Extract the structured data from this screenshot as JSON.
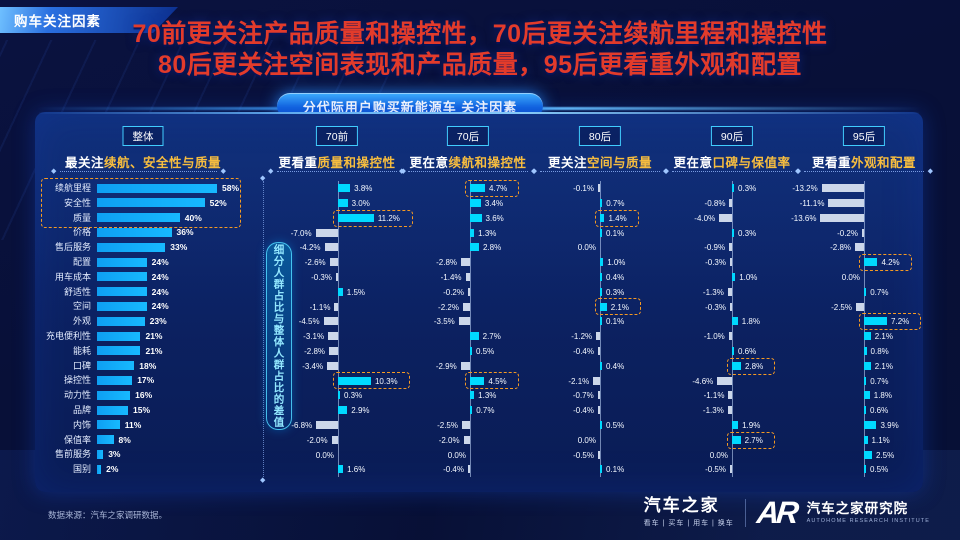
{
  "badge": "购车关注因素",
  "title": {
    "line1": "70前更关注产品质量和操控性，70后更关注续航里程和操控性",
    "line2": "80后更关注空间表现和产品质量，95后更看重外观和配置"
  },
  "pill": "分代际用户购买新能源车 关注因素",
  "axis_note": "细分人群占比与整体人群占比的差值",
  "categories": [
    "续航里程",
    "安全性",
    "质量",
    "价格",
    "售后服务",
    "配置",
    "用车成本",
    "舒适性",
    "空间",
    "外观",
    "充电便利性",
    "能耗",
    "口碑",
    "操控性",
    "动力性",
    "品牌",
    "内饰",
    "保值率",
    "售前服务",
    "国别"
  ],
  "overall": {
    "tab": "整体",
    "subtitle_prefix": "最关注",
    "subtitle_highlight": "续航、安全性与质量",
    "values": [
      58,
      52,
      40,
      36,
      33,
      24,
      24,
      24,
      24,
      23,
      21,
      21,
      18,
      17,
      16,
      15,
      11,
      8,
      3,
      2
    ],
    "boxed_rows": [
      0,
      1,
      2
    ]
  },
  "groups": [
    {
      "tab": "70前",
      "subtitle_prefix": "更看重",
      "subtitle_highlight": "质量和操控性",
      "values": [
        3.8,
        3.0,
        11.2,
        -7.0,
        -4.2,
        -2.6,
        -0.3,
        1.5,
        -1.1,
        -4.5,
        -3.1,
        -2.8,
        -3.4,
        10.3,
        0.3,
        2.9,
        -6.8,
        -2.0,
        0.0,
        1.6
      ],
      "boxed": [
        2,
        13
      ]
    },
    {
      "tab": "70后",
      "subtitle_prefix": "更在意",
      "subtitle_highlight": "续航和操控性",
      "values": [
        4.7,
        3.4,
        3.6,
        1.3,
        2.8,
        -2.8,
        -1.4,
        -0.2,
        -2.2,
        -3.5,
        2.7,
        0.5,
        -2.9,
        4.5,
        1.3,
        0.7,
        -2.5,
        -2.0,
        0.0,
        -0.4
      ],
      "boxed": [
        0,
        13
      ]
    },
    {
      "tab": "80后",
      "subtitle_prefix": "更关注",
      "subtitle_highlight": "空间与质量",
      "values": [
        -0.1,
        0.7,
        1.4,
        0.1,
        0.0,
        1.0,
        0.4,
        0.3,
        2.1,
        0.1,
        -1.2,
        -0.4,
        0.4,
        -2.1,
        -0.7,
        -0.4,
        0.5,
        0.0,
        -0.5,
        0.1
      ],
      "boxed": [
        2,
        8
      ]
    },
    {
      "tab": "90后",
      "subtitle_prefix": "更在意",
      "subtitle_highlight": "口碑与保值率",
      "values": [
        0.3,
        -0.8,
        -4.0,
        0.3,
        -0.9,
        -0.3,
        1.0,
        -1.3,
        -0.3,
        1.8,
        -1.0,
        0.6,
        2.8,
        -4.6,
        -1.1,
        -1.3,
        1.9,
        2.7,
        0.0,
        -0.5
      ],
      "boxed": [
        12,
        17
      ]
    },
    {
      "tab": "95后",
      "subtitle_prefix": "更看重",
      "subtitle_highlight": "外观和配置",
      "values": [
        -13.2,
        -11.1,
        -13.6,
        -0.2,
        -2.8,
        4.2,
        0.0,
        0.7,
        -2.5,
        7.2,
        2.1,
        0.8,
        2.1,
        0.7,
        1.8,
        0.6,
        3.9,
        1.1,
        2.5,
        0.5
      ],
      "boxed": [
        5,
        9
      ]
    }
  ],
  "source": "数据来源：汽车之家调研数据。",
  "footer": {
    "brand": "汽车之家",
    "brand_sub": "看车 | 买车 | 用车 | 换车",
    "logo_text": "AR",
    "institute": "汽车之家研究院",
    "institute_sub": "AUTOHOME RESEARCH INSTITUTE"
  },
  "colors": {
    "title_red": "#e23b2b",
    "gold_highlight": "#f7bd3f",
    "overall_bar": "#0e9ff2",
    "diff_positive": "#00d9ff",
    "diff_negative": "#ccd7ea",
    "highlight_dash": "#f59a23",
    "tab_border": "#41cdff",
    "panel_bg": "#0c2263"
  },
  "chart_data": [
    {
      "type": "bar",
      "orientation": "horizontal",
      "title": "整体：最关注续航、安全性与质量",
      "unit": "%",
      "categories": [
        "续航里程",
        "安全性",
        "质量",
        "价格",
        "售后服务",
        "配置",
        "用车成本",
        "舒适性",
        "空间",
        "外观",
        "充电便利性",
        "能耗",
        "口碑",
        "操控性",
        "动力性",
        "品牌",
        "内饰",
        "保值率",
        "售前服务",
        "国别"
      ],
      "values": [
        58,
        52,
        40,
        36,
        33,
        24,
        24,
        24,
        24,
        23,
        21,
        21,
        18,
        17,
        16,
        15,
        11,
        8,
        3,
        2
      ],
      "xlim": [
        0,
        60
      ],
      "grid": false
    },
    {
      "type": "bar",
      "orientation": "horizontal-diverging",
      "title": "分代际用户购买新能源车 关注因素：细分人群占比与整体人群占比的差值",
      "unit": "%",
      "categories": [
        "续航里程",
        "安全性",
        "质量",
        "价格",
        "售后服务",
        "配置",
        "用车成本",
        "舒适性",
        "空间",
        "外观",
        "充电便利性",
        "能耗",
        "口碑",
        "操控性",
        "动力性",
        "品牌",
        "内饰",
        "保值率",
        "售前服务",
        "国别"
      ],
      "series": [
        {
          "name": "70前",
          "values": [
            3.8,
            3.0,
            11.2,
            -7.0,
            -4.2,
            -2.6,
            -0.3,
            1.5,
            -1.1,
            -4.5,
            -3.1,
            -2.8,
            -3.4,
            10.3,
            0.3,
            2.9,
            -6.8,
            -2.0,
            0.0,
            1.6
          ]
        },
        {
          "name": "70后",
          "values": [
            4.7,
            3.4,
            3.6,
            1.3,
            2.8,
            -2.8,
            -1.4,
            -0.2,
            -2.2,
            -3.5,
            2.7,
            0.5,
            -2.9,
            4.5,
            1.3,
            0.7,
            -2.5,
            -2.0,
            0.0,
            -0.4
          ]
        },
        {
          "name": "80后",
          "values": [
            -0.1,
            0.7,
            1.4,
            0.1,
            0.0,
            1.0,
            0.4,
            0.3,
            2.1,
            0.1,
            -1.2,
            -0.4,
            0.4,
            -2.1,
            -0.7,
            -0.4,
            0.5,
            0.0,
            -0.5,
            0.1
          ]
        },
        {
          "name": "90后",
          "values": [
            0.3,
            -0.8,
            -4.0,
            0.3,
            -0.9,
            -0.3,
            1.0,
            -1.3,
            -0.3,
            1.8,
            -1.0,
            0.6,
            2.8,
            -4.6,
            -1.1,
            -1.3,
            1.9,
            2.7,
            0.0,
            -0.5
          ]
        },
        {
          "name": "95后",
          "values": [
            -13.2,
            -11.1,
            -13.6,
            -0.2,
            -2.8,
            4.2,
            0.0,
            0.7,
            -2.5,
            7.2,
            2.1,
            0.8,
            2.1,
            0.7,
            1.8,
            0.6,
            3.9,
            1.1,
            2.5,
            0.5
          ]
        }
      ],
      "xlim": [
        -15,
        15
      ],
      "grid": false
    }
  ]
}
